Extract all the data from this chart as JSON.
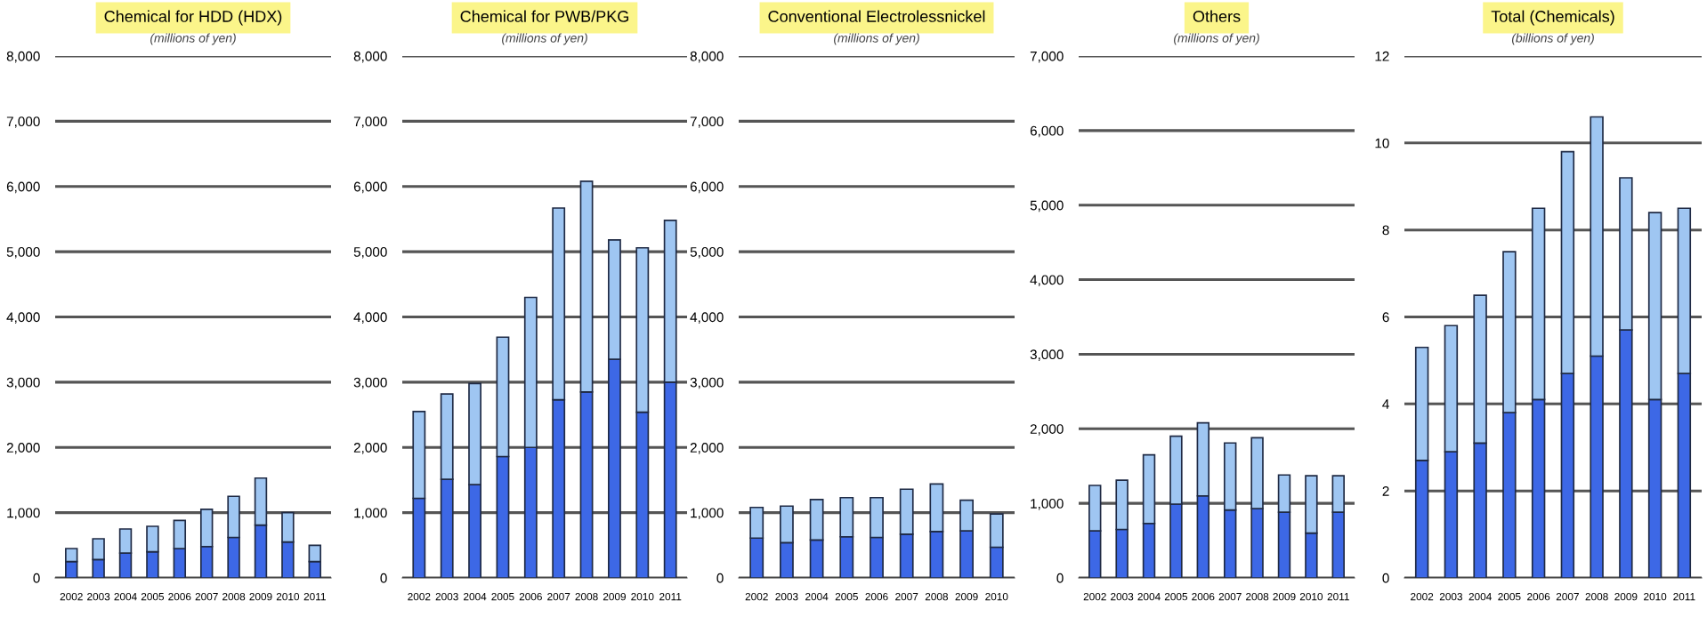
{
  "chart_data": [
    {
      "type": "bar",
      "title": "Chemical for HDD (HDX)",
      "subtitle": "(millions of yen)",
      "stacked": true,
      "grid": "y",
      "categories": [
        "2002",
        "2003",
        "2004",
        "2005",
        "2006",
        "2007",
        "2008",
        "2009",
        "2010",
        "2011"
      ],
      "ylim": [
        0,
        8000
      ],
      "yticks": [
        0,
        {
          "value": 1000,
          "label": "1,000"
        },
        {
          "value": 2000,
          "label": "2,000"
        },
        {
          "value": 3000,
          "label": "3,000"
        },
        {
          "value": 4000,
          "label": "4,000"
        },
        {
          "value": 5000,
          "label": "5,000"
        },
        {
          "value": 6000,
          "label": "6,000"
        },
        {
          "value": 7000,
          "label": "7,000"
        },
        {
          "value": 8000,
          "label": "8,000"
        }
      ],
      "series": [
        {
          "color": "#3d68e6",
          "values": [
            250,
            280,
            380,
            400,
            450,
            480,
            620,
            810,
            550,
            250
          ]
        },
        {
          "color": "#9fc6f2",
          "values": [
            200,
            320,
            370,
            390,
            430,
            570,
            630,
            720,
            450,
            250
          ]
        }
      ]
    },
    {
      "type": "bar",
      "title": "Chemical for PWB/PKG",
      "subtitle": "(millions of yen)",
      "stacked": true,
      "grid": "y",
      "categories": [
        "2002",
        "2003",
        "2004",
        "2005",
        "2006",
        "2007",
        "2008",
        "2009",
        "2010",
        "2011"
      ],
      "ylim": [
        0,
        8000
      ],
      "yticks": [
        0,
        {
          "value": 1000,
          "label": "1,000"
        },
        {
          "value": 2000,
          "label": "2,000"
        },
        {
          "value": 3000,
          "label": "3,000"
        },
        {
          "value": 4000,
          "label": "4,000"
        },
        {
          "value": 5000,
          "label": "5,000"
        },
        {
          "value": 6000,
          "label": "6,000"
        },
        {
          "value": 7000,
          "label": "7,000"
        },
        {
          "value": 8000,
          "label": "8,000"
        }
      ],
      "series": [
        {
          "color": "#3d68e6",
          "values": [
            1220,
            1510,
            1430,
            1860,
            2000,
            2730,
            2850,
            3350,
            2540,
            3000
          ]
        },
        {
          "color": "#9fc6f2",
          "values": [
            1330,
            1310,
            1550,
            1830,
            2300,
            2940,
            3230,
            1830,
            2520,
            2480
          ]
        }
      ]
    },
    {
      "type": "bar",
      "title": "Conventional Electrolessnickel",
      "subtitle": "(millions of yen)",
      "stacked": true,
      "grid": "y",
      "categories": [
        "2002",
        "2003",
        "2004",
        "2005",
        "2006",
        "2007",
        "2008",
        "2009",
        "2010"
      ],
      "ylim": [
        0,
        8000
      ],
      "yticks": [
        0,
        {
          "value": 1000,
          "label": "1,000"
        },
        {
          "value": 2000,
          "label": "2,000"
        },
        {
          "value": 3000,
          "label": "3,000"
        },
        {
          "value": 4000,
          "label": "4,000"
        },
        {
          "value": 5000,
          "label": "5,000"
        },
        {
          "value": 6000,
          "label": "6,000"
        },
        {
          "value": 7000,
          "label": "7,000"
        },
        {
          "value": 8000,
          "label": "8,000"
        }
      ],
      "series": [
        {
          "color": "#3d68e6",
          "values": [
            610,
            540,
            580,
            630,
            620,
            670,
            710,
            720,
            470
          ]
        },
        {
          "color": "#9fc6f2",
          "values": [
            470,
            560,
            620,
            600,
            610,
            690,
            730,
            470,
            510
          ]
        }
      ]
    },
    {
      "type": "bar",
      "title": "Others",
      "subtitle": "(millions of yen)",
      "stacked": true,
      "grid": "y",
      "categories": [
        "2002",
        "2003",
        "2004",
        "2005",
        "2006",
        "2007",
        "2008",
        "2009",
        "2010",
        "2011"
      ],
      "ylim": [
        0,
        7000
      ],
      "yticks": [
        0,
        {
          "value": 1000,
          "label": "1,000"
        },
        {
          "value": 2000,
          "label": "2,000"
        },
        {
          "value": 3000,
          "label": "3,000"
        },
        {
          "value": 4000,
          "label": "4,000"
        },
        {
          "value": 5000,
          "label": "5,000"
        },
        {
          "value": 6000,
          "label": "6,000"
        },
        {
          "value": 7000,
          "label": "7,000"
        }
      ],
      "series": [
        {
          "color": "#3d68e6",
          "values": [
            630,
            650,
            730,
            990,
            1100,
            910,
            930,
            880,
            600,
            880
          ]
        },
        {
          "color": "#9fc6f2",
          "values": [
            610,
            660,
            920,
            910,
            980,
            900,
            950,
            500,
            770,
            490
          ]
        }
      ]
    },
    {
      "type": "bar",
      "title": "Total (Chemicals)",
      "subtitle": "(billions of yen)",
      "stacked": true,
      "grid": "y",
      "categories": [
        "2002",
        "2003",
        "2004",
        "2005",
        "2006",
        "2007",
        "2008",
        "2009",
        "2010",
        "2011"
      ],
      "ylim": [
        0,
        12
      ],
      "yticks": [
        0,
        2,
        4,
        6,
        8,
        10,
        12
      ],
      "series": [
        {
          "color": "#3d68e6",
          "values": [
            2.7,
            2.9,
            3.1,
            3.8,
            4.1,
            4.7,
            5.1,
            5.7,
            4.1,
            4.7
          ]
        },
        {
          "color": "#9fc6f2",
          "values": [
            2.6,
            2.9,
            3.4,
            3.7,
            4.4,
            5.1,
            5.5,
            3.5,
            4.3,
            3.8
          ]
        }
      ]
    }
  ]
}
